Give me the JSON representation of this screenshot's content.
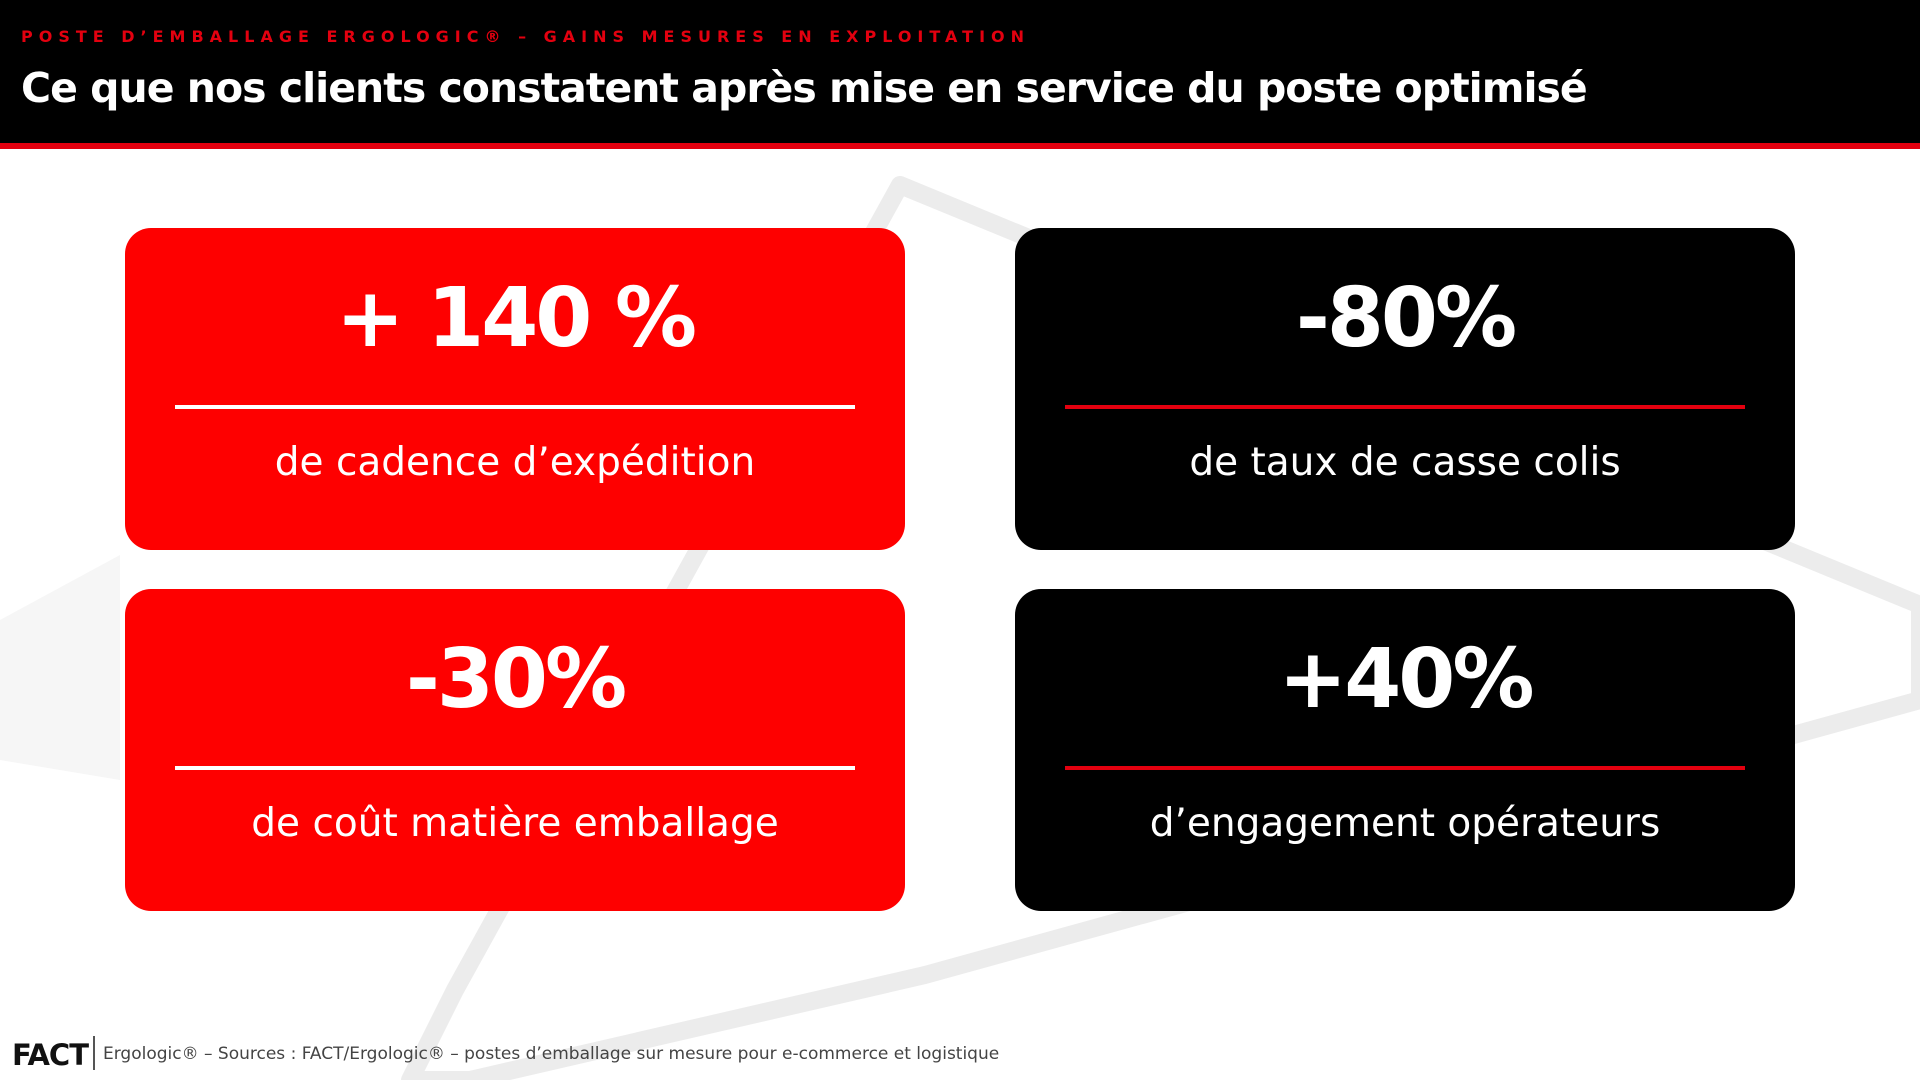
{
  "header": {
    "overline": "POSTE D’EMBALLAGE ERGOLOGIC® – GAINS MESURES EN EXPLOITATION",
    "title": "Ce que nos clients constatent après mise en service du poste optimisé"
  },
  "cards": [
    {
      "value": "+ 140 %",
      "label": "de cadence d’expédition",
      "theme": "red"
    },
    {
      "value": "-80%",
      "label": "de taux de casse colis",
      "theme": "black"
    },
    {
      "value": "-30%",
      "label": "de coût matière emballage",
      "theme": "red"
    },
    {
      "value": "+40%",
      "label": "d’engagement opérateurs",
      "theme": "black"
    }
  ],
  "footer": {
    "logo": "FACT",
    "text": "Ergologic® – Sources : FACT/Ergologic® – postes d’emballage sur mesure pour e-commerce et logistique"
  },
  "colors": {
    "accent_red": "#fe0000",
    "header_black": "#000000",
    "text_white": "#ffffff"
  }
}
